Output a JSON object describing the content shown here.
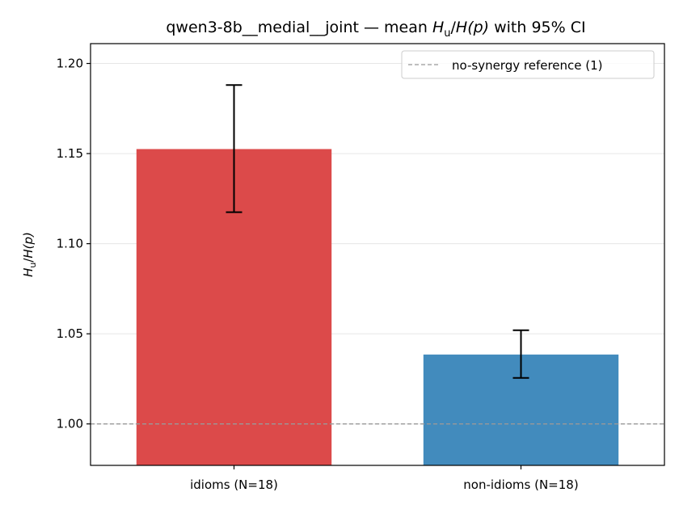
{
  "chart_data": {
    "type": "bar",
    "title": "qwen3-8b__medial__joint — mean H",
    "title_sub": "u",
    "title_rest": "/H(p) with 95% CI",
    "title_prefix": "qwen3-8b__medial__joint — mean ",
    "title_H": "H",
    "title_slash": "/",
    "title_Hp": "H",
    "title_p": "(p)",
    "title_suffix": " with 95% CI",
    "ylabel_H": "H",
    "ylabel_sub": "u",
    "ylabel_slash": "/",
    "ylabel_Hp": "H",
    "ylabel_p": "(p)",
    "categories": [
      "idioms (N=18)",
      "non-idioms (N=18)"
    ],
    "values": [
      1.1525,
      1.0385
    ],
    "ci_low": [
      1.1175,
      1.0255
    ],
    "ci_high": [
      1.188,
      1.052
    ],
    "colors": [
      "#dc4a4a",
      "#428bbd"
    ],
    "ylim": [
      0.977,
      1.211
    ],
    "yticks": [
      "1.00",
      "1.05",
      "1.10",
      "1.15",
      "1.20"
    ],
    "ytick_values": [
      1.0,
      1.05,
      1.1,
      1.15,
      1.2
    ],
    "reference_line": 1.0,
    "reference_color": "#999999",
    "grid": true,
    "legend": {
      "placement": "top-right",
      "label": "no-synergy reference (1)"
    }
  }
}
